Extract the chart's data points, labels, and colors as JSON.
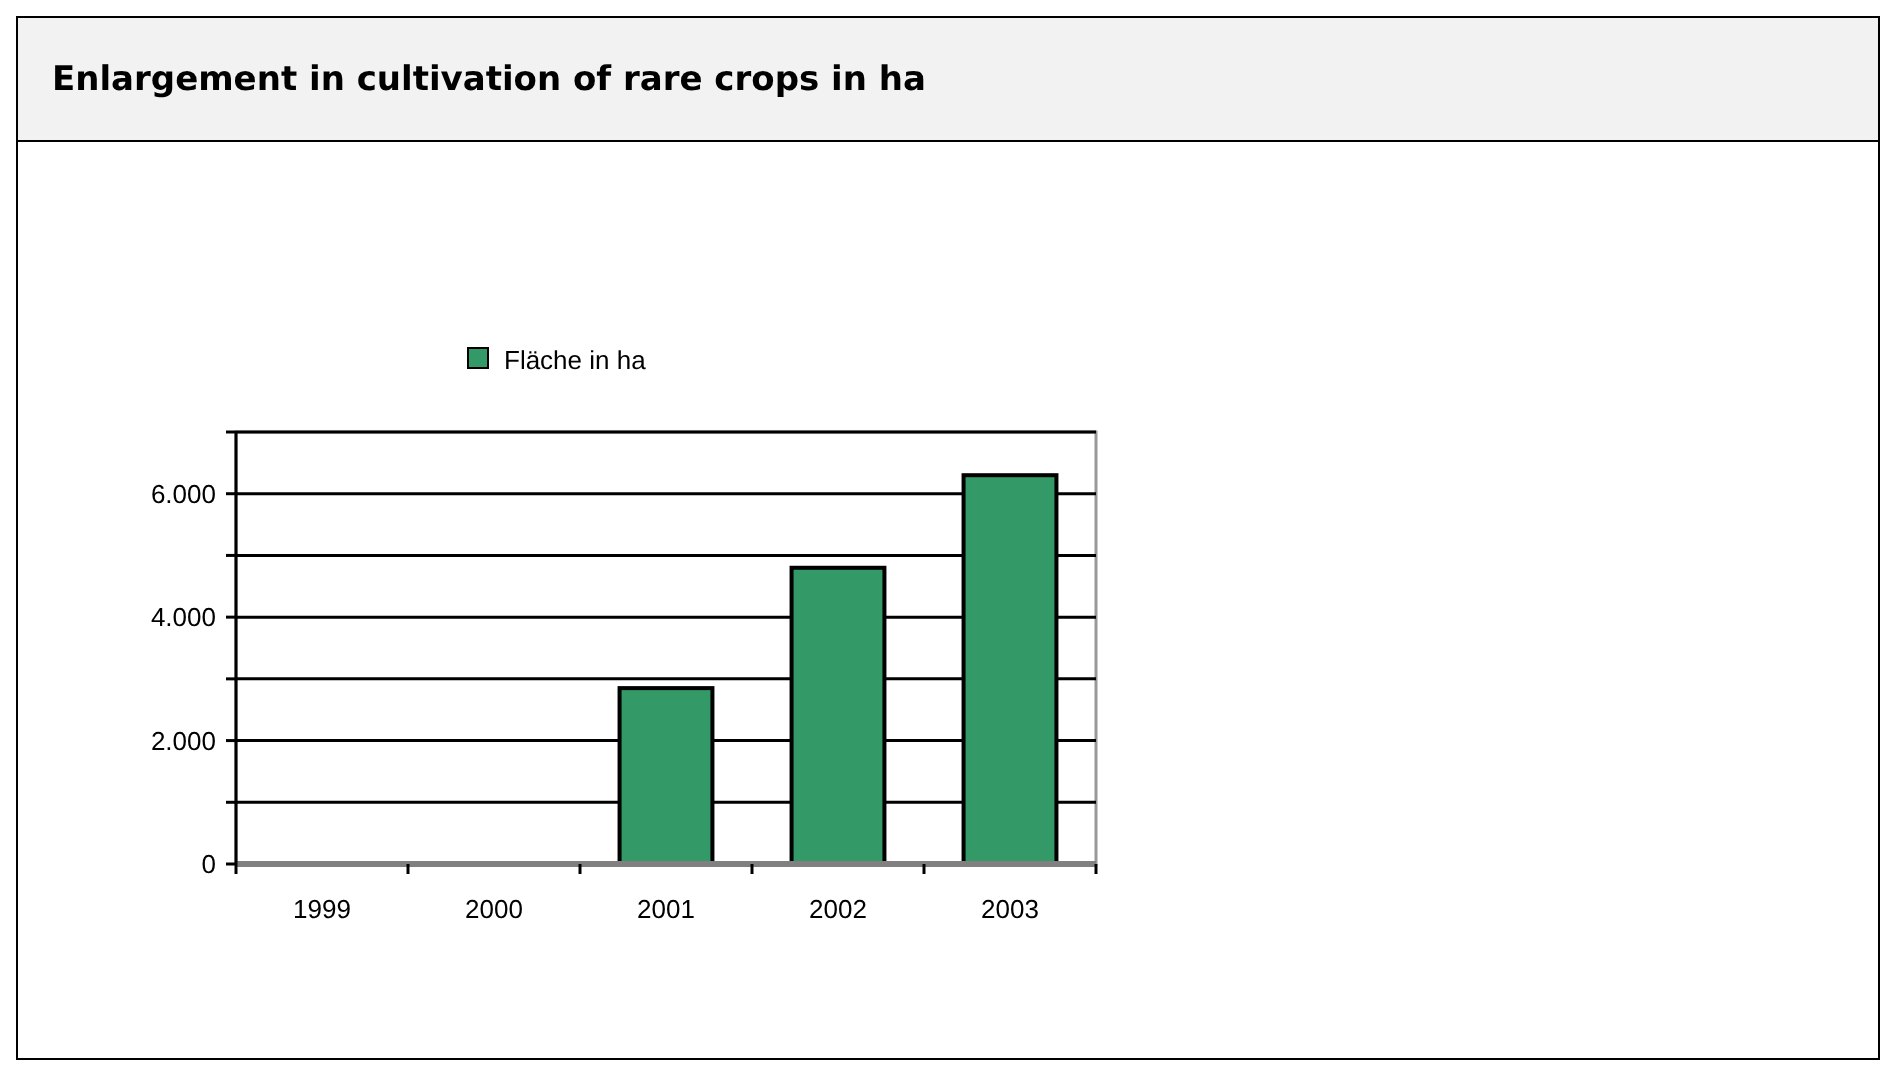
{
  "chart_data": {
    "type": "bar",
    "title": "Enlargement in cultivation of rare crops in ha",
    "categories": [
      "1999",
      "2000",
      "2001",
      "2002",
      "2003"
    ],
    "series": [
      {
        "name": "Fläche in ha",
        "color": "#339966",
        "values": [
          0,
          0,
          2850,
          4800,
          6300
        ]
      }
    ],
    "ylim": [
      0,
      7000
    ],
    "yticks": [
      0,
      {
        "value": 1000,
        "label": null
      },
      {
        "value": 2000,
        "label": "2.000"
      },
      {
        "value": 3000,
        "label": null
      },
      {
        "value": 4000,
        "label": "4.000"
      },
      {
        "value": 5000,
        "label": null
      },
      {
        "value": 6000,
        "label": "6.000"
      },
      {
        "value": 7000,
        "label": null
      }
    ],
    "grid": "y",
    "legend": "top"
  }
}
